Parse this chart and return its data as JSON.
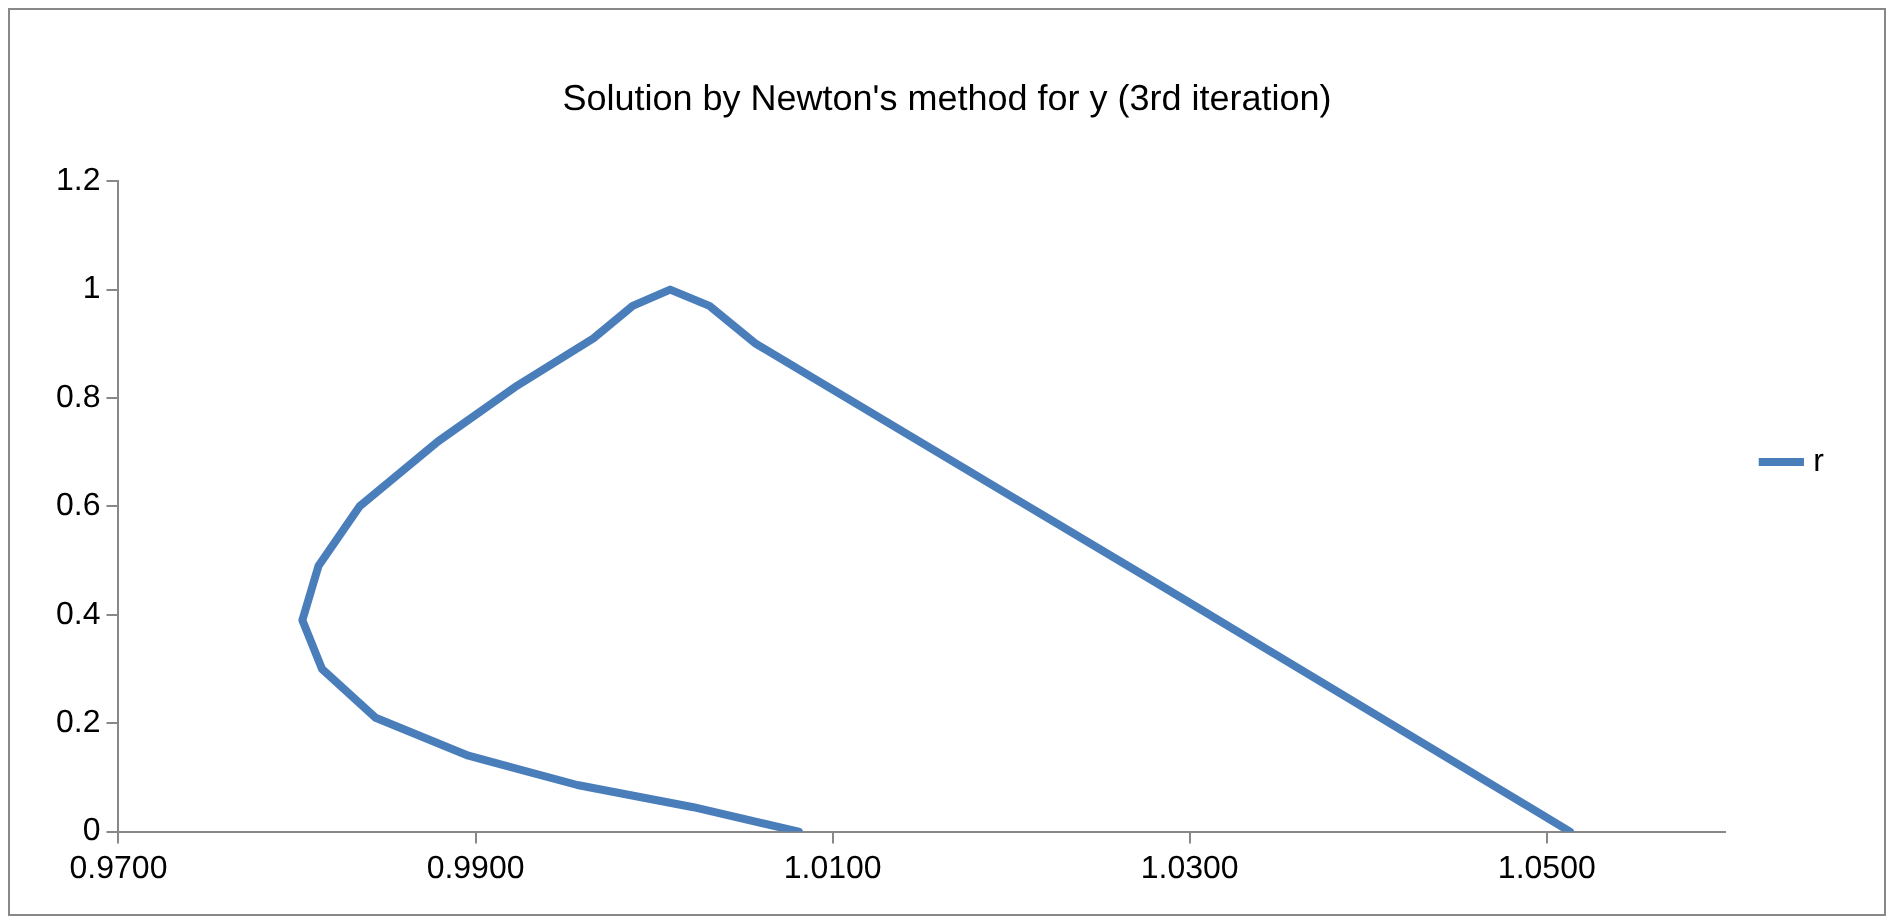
{
  "chart_data": {
    "type": "line",
    "title": "Solution by Newton's method for y (3rd iteration)",
    "xlim": [
      0.97,
      1.06
    ],
    "xticks": [
      {
        "value": 0.97,
        "label": "0.9700"
      },
      {
        "value": 0.99,
        "label": "0.9900"
      },
      {
        "value": 1.01,
        "label": "1.0100"
      },
      {
        "value": 1.03,
        "label": "1.0300"
      },
      {
        "value": 1.05,
        "label": "1.0500"
      }
    ],
    "ylim": [
      0,
      1.2
    ],
    "yticks": [
      0,
      0.2,
      0.4,
      0.6,
      0.8,
      1,
      1.2
    ],
    "grid": false,
    "legend": "right",
    "marker": "none",
    "line_style": "solid",
    "series": [
      {
        "name": "r",
        "color": "#4a7ebb",
        "x": [
          1.0081,
          1.0022,
          0.9957,
          0.9896,
          0.9844,
          0.9814,
          0.9803,
          0.9812,
          0.9835,
          0.9879,
          0.9922,
          0.9966,
          0.9988,
          1.0009,
          1.0031,
          1.0057,
          1.0296,
          1.0513
        ],
        "values": [
          0,
          0.045,
          0.086,
          0.14,
          0.21,
          0.3,
          0.39,
          0.49,
          0.6,
          0.72,
          0.82,
          0.91,
          0.97,
          1.0,
          0.97,
          0.9,
          0.43,
          0
        ]
      }
    ]
  }
}
